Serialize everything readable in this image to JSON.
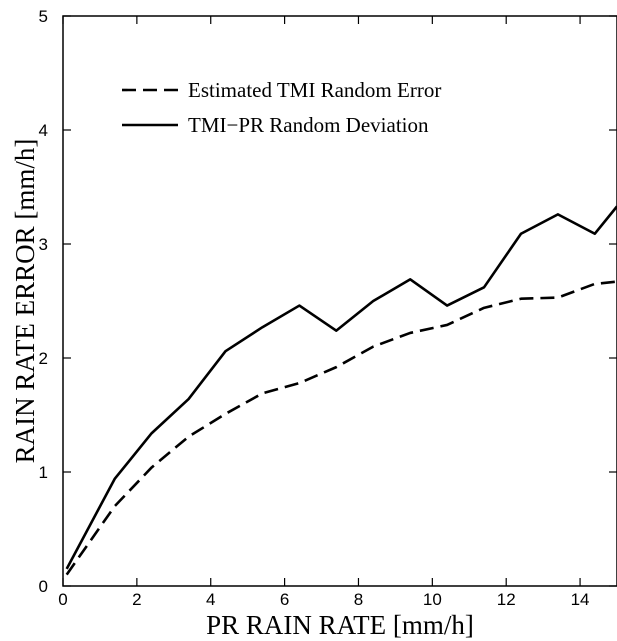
{
  "chart_data": {
    "type": "line",
    "title": "",
    "xlabel": "PR RAIN RATE [mm/h]",
    "ylabel": "RAIN RATE ERROR [mm/h]",
    "xlim": [
      0,
      15
    ],
    "ylim": [
      0,
      5
    ],
    "xticks": [
      0,
      2,
      4,
      6,
      8,
      10,
      12,
      14
    ],
    "yticks": [
      0,
      1,
      2,
      3,
      4,
      5
    ],
    "grid": false,
    "legend_position": "top-left",
    "series": [
      {
        "name": "Estimated TMI Random Error",
        "style": "dashed",
        "color": "#000000",
        "x": [
          0.1,
          1.4,
          2.4,
          3.4,
          4.4,
          5.4,
          6.4,
          7.4,
          8.4,
          9.4,
          10.4,
          11.4,
          12.4,
          13.4,
          14.4,
          15.0
        ],
        "y": [
          0.1,
          0.7,
          1.04,
          1.31,
          1.51,
          1.69,
          1.78,
          1.92,
          2.1,
          2.22,
          2.29,
          2.44,
          2.52,
          2.53,
          2.65,
          2.67
        ]
      },
      {
        "name": "TMI−PR Random Deviation",
        "style": "solid",
        "color": "#000000",
        "x": [
          0.1,
          1.4,
          2.4,
          3.4,
          4.4,
          5.4,
          6.4,
          7.4,
          8.4,
          9.4,
          10.4,
          11.4,
          12.4,
          13.4,
          14.4,
          15.0
        ],
        "y": [
          0.15,
          0.94,
          1.34,
          1.64,
          2.06,
          2.27,
          2.46,
          2.24,
          2.5,
          2.69,
          2.46,
          2.62,
          3.09,
          3.26,
          3.09,
          3.33
        ]
      }
    ]
  }
}
